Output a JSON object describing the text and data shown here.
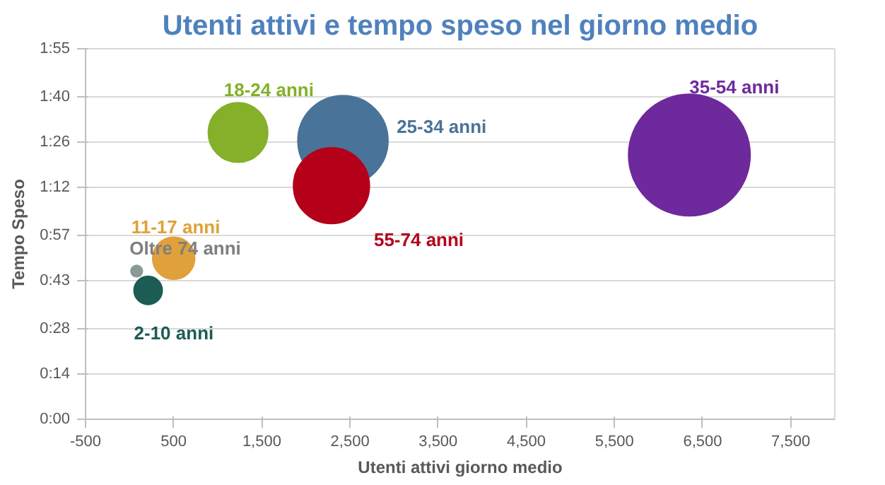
{
  "chart_data": {
    "type": "bubble",
    "title": "Utenti attivi e tempo speso nel giorno medio",
    "xlabel": "Utenti attivi giorno medio",
    "ylabel": "Tempo Speso",
    "xlim": [
      -500,
      8000
    ],
    "xticks": [
      {
        "value": -500,
        "label": "-500"
      },
      {
        "value": 500,
        "label": "500"
      },
      {
        "value": 1500,
        "label": "1,500"
      },
      {
        "value": 2500,
        "label": "2,500"
      },
      {
        "value": 3500,
        "label": "3,500"
      },
      {
        "value": 4500,
        "label": "4,500"
      },
      {
        "value": 5500,
        "label": "5,500"
      },
      {
        "value": 6500,
        "label": "6,500"
      },
      {
        "value": 7500,
        "label": "7,500"
      }
    ],
    "ylim": [
      0,
      115
    ],
    "yticks": [
      {
        "value": 0,
        "label": "0:00"
      },
      {
        "value": 14,
        "label": "0:14"
      },
      {
        "value": 28,
        "label": "0:28"
      },
      {
        "value": 43,
        "label": "0:43"
      },
      {
        "value": 57,
        "label": "0:57"
      },
      {
        "value": 72,
        "label": "1:12"
      },
      {
        "value": 86,
        "label": "1:26"
      },
      {
        "value": 100,
        "label": "1:40"
      },
      {
        "value": 115,
        "label": "1:55"
      }
    ],
    "grid": "y",
    "series": [
      {
        "name": "18-24  anni",
        "color": "#84b02a",
        "x": [
          1230
        ],
        "values": [
          89
        ],
        "sizes": [
          0.24
        ]
      },
      {
        "name": "25-34  anni",
        "color": "#4a7399",
        "x": [
          2420
        ],
        "values": [
          86.5
        ],
        "sizes": [
          0.55
        ]
      },
      {
        "name": "55-74 anni",
        "color": "#b5001a",
        "x": [
          2290
        ],
        "values": [
          72.5
        ],
        "sizes": [
          0.39
        ]
      },
      {
        "name": "35-54 anni",
        "color": "#6e2a9c",
        "x": [
          6350
        ],
        "values": [
          82
        ],
        "sizes": [
          1
        ]
      },
      {
        "name": "11-17 anni",
        "color": "#e0a13a",
        "x": [
          500
        ],
        "values": [
          50
        ],
        "sizes": [
          0.12
        ]
      },
      {
        "name": "Oltre 74 anni",
        "color": "#8a9a98",
        "x": [
          80
        ],
        "values": [
          46
        ],
        "sizes": [
          0.009
        ]
      },
      {
        "name": "2-10 anni",
        "color": "#1d5c55",
        "x": [
          210
        ],
        "values": [
          40
        ],
        "sizes": [
          0.054
        ]
      }
    ]
  }
}
